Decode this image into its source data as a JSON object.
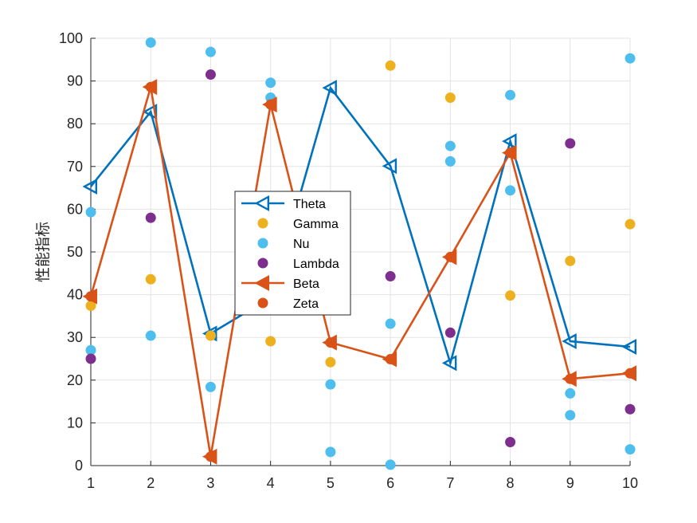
{
  "chart_data": {
    "type": "line",
    "title": "",
    "xlabel": "",
    "ylabel": "性能指标",
    "xlim": [
      1,
      10
    ],
    "ylim": [
      0,
      100
    ],
    "xticks": [
      1,
      2,
      3,
      4,
      5,
      6,
      7,
      8,
      9,
      10
    ],
    "yticks": [
      0,
      10,
      20,
      30,
      40,
      50,
      60,
      70,
      80,
      90,
      100
    ],
    "grid": true,
    "legend_location": "center-left",
    "series": [
      {
        "name": "Theta",
        "kind": "line",
        "marker": "triangle-left",
        "color": "#0072BD",
        "x": [
          1,
          2,
          3,
          4,
          5,
          6,
          7,
          8,
          9,
          10
        ],
        "y": [
          65.3,
          82.8,
          30.9,
          39.3,
          88.4,
          70.1,
          24.0,
          75.9,
          29.1,
          27.8
        ]
      },
      {
        "name": "Gamma",
        "kind": "scatter",
        "marker": "circle",
        "color": "#EDB120",
        "x": [
          1,
          2,
          3,
          4,
          5,
          6,
          7,
          8,
          9,
          10
        ],
        "y": [
          37.4,
          43.6,
          30.4,
          29.1,
          24.2,
          93.6,
          86.1,
          39.8,
          47.9,
          56.5
        ]
      },
      {
        "name": "Nu",
        "kind": "scatter",
        "marker": "circle",
        "color": "#4DBEEE",
        "x": [
          1,
          1,
          2,
          2,
          3,
          3,
          4,
          4,
          5,
          5,
          6,
          6,
          7,
          7,
          8,
          8,
          9,
          9,
          10,
          10
        ],
        "y": [
          59.3,
          27.0,
          99.0,
          30.4,
          96.8,
          18.4,
          89.6,
          86.1,
          19.0,
          3.2,
          33.2,
          0.2,
          74.8,
          71.2,
          86.7,
          64.4,
          16.9,
          11.8,
          95.3,
          3.8
        ]
      },
      {
        "name": "Lambda",
        "kind": "scatter",
        "marker": "circle",
        "color": "#7E2F8E",
        "x": [
          1,
          2,
          3,
          6,
          7,
          8,
          9,
          10
        ],
        "y": [
          25.0,
          58.0,
          91.5,
          44.3,
          31.1,
          5.5,
          75.4,
          13.2
        ]
      },
      {
        "name": "Beta",
        "kind": "line",
        "marker": "triangle-left",
        "color": "#D95319",
        "x": [
          1,
          2,
          3,
          4,
          5,
          6,
          7,
          8,
          9,
          10
        ],
        "y": [
          39.6,
          88.6,
          2.1,
          84.5,
          28.8,
          24.9,
          48.8,
          73.2,
          20.3,
          21.6
        ]
      },
      {
        "name": "Zeta",
        "kind": "scatter",
        "marker": "circle",
        "color": "#D95319",
        "x": [
          1,
          2,
          3,
          4,
          5,
          6,
          7,
          8,
          9,
          10
        ],
        "y": [
          39.6,
          88.6,
          2.1,
          84.5,
          28.8,
          24.9,
          48.8,
          73.2,
          20.3,
          21.6
        ]
      }
    ]
  }
}
